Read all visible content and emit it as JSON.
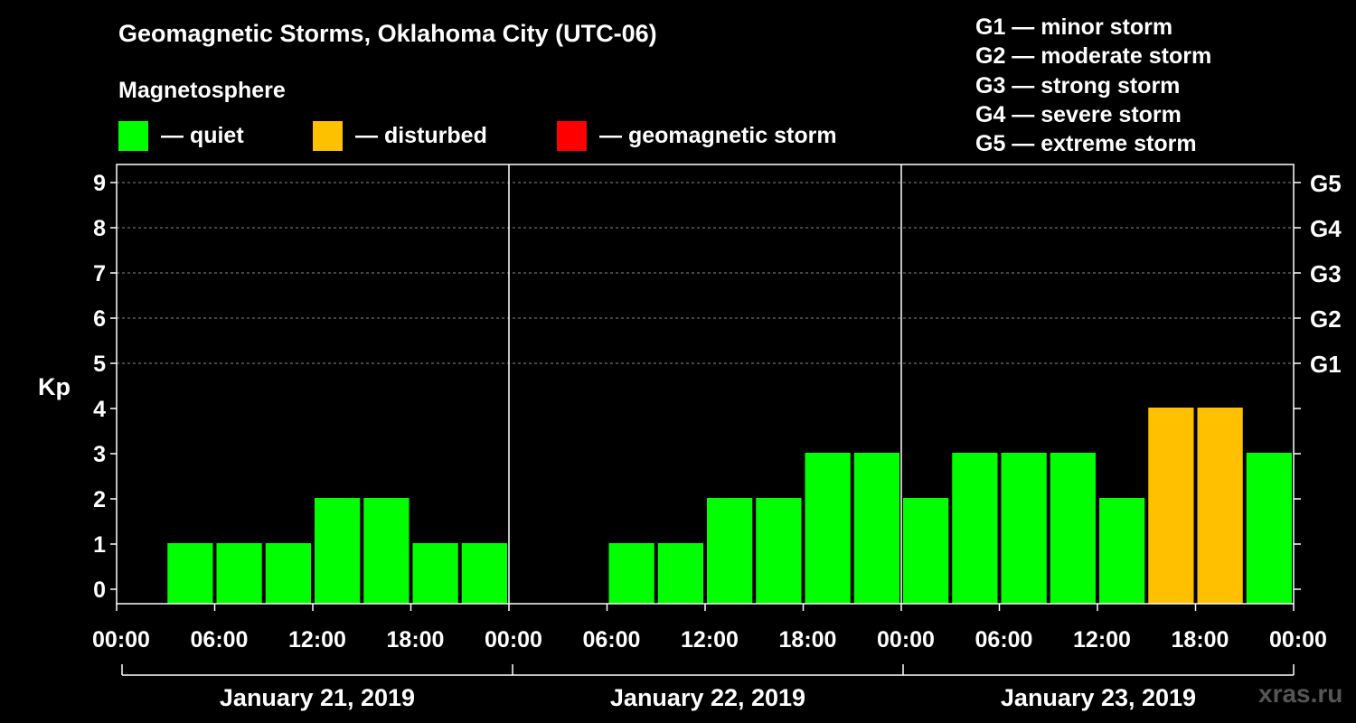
{
  "title": "Geomagnetic Storms, Oklahoma City (UTC-06)",
  "subtitle": "Magnetosphere",
  "legend": [
    {
      "label": "— quiet",
      "color": "#00ff00"
    },
    {
      "label": "— disturbed",
      "color": "#ffc000"
    },
    {
      "label": "— geomagnetic storm",
      "color": "#ff0000"
    }
  ],
  "g_scale": [
    "G1 — minor storm",
    "G2 — moderate storm",
    "G3 — strong storm",
    "G4 — severe storm",
    "G5 — extreme storm"
  ],
  "watermark": "xras.ru",
  "chart_data": {
    "type": "bar",
    "title": "Geomagnetic Storms, Oklahoma City (UTC-06)",
    "ylabel": "Kp",
    "ylim": [
      0,
      9
    ],
    "yticks": [
      "0",
      "1",
      "2",
      "3",
      "4",
      "5",
      "6",
      "7",
      "8",
      "9"
    ],
    "right_axis_ticks": [
      {
        "kp": 5,
        "label": "G1"
      },
      {
        "kp": 6,
        "label": "G2"
      },
      {
        "kp": 7,
        "label": "G3"
      },
      {
        "kp": 8,
        "label": "G4"
      },
      {
        "kp": 9,
        "label": "G5"
      }
    ],
    "grid_from_kp": 5,
    "xtick_labels": [
      "00:00",
      "06:00",
      "12:00",
      "18:00",
      "00:00",
      "06:00",
      "12:00",
      "18:00",
      "00:00",
      "06:00",
      "12:00",
      "18:00",
      "00:00"
    ],
    "days": [
      "January 21, 2019",
      "January 22, 2019",
      "January 23, 2019"
    ],
    "slots_per_day": 8,
    "values": [
      null,
      1,
      1,
      1,
      2,
      2,
      1,
      1,
      null,
      null,
      1,
      1,
      2,
      2,
      3,
      3,
      2,
      3,
      3,
      3,
      2,
      4,
      4,
      3
    ],
    "status_thresholds": {
      "quiet_max": 3,
      "disturbed_max": 4
    },
    "colors": {
      "quiet": "#00ff00",
      "disturbed": "#ffc000",
      "storm": "#ff0000"
    }
  }
}
